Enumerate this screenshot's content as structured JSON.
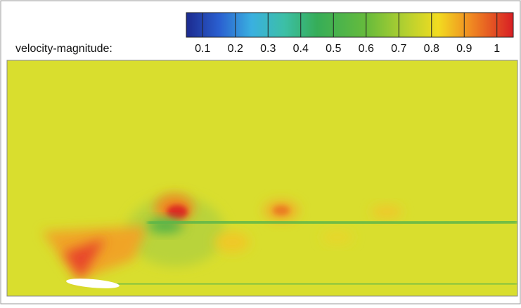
{
  "chart_data": {
    "type": "colorbar",
    "label": "velocity-magnitude:",
    "clim": [
      0.05,
      1.05
    ],
    "ticks": [
      0.1,
      0.2,
      0.3,
      0.4,
      0.5,
      0.6,
      0.7,
      0.8,
      0.9,
      1
    ],
    "colormap": [
      {
        "value": 0.05,
        "color": "#1c2a8e"
      },
      {
        "value": 0.15,
        "color": "#2a5fd0"
      },
      {
        "value": 0.25,
        "color": "#3ab0e0"
      },
      {
        "value": 0.35,
        "color": "#3cbfa6"
      },
      {
        "value": 0.45,
        "color": "#36ad58"
      },
      {
        "value": 0.6,
        "color": "#66bb3c"
      },
      {
        "value": 0.72,
        "color": "#b4d030"
      },
      {
        "value": 0.82,
        "color": "#f2dc20"
      },
      {
        "value": 0.92,
        "color": "#f08a22"
      },
      {
        "value": 1.05,
        "color": "#d81e24"
      }
    ]
  }
}
